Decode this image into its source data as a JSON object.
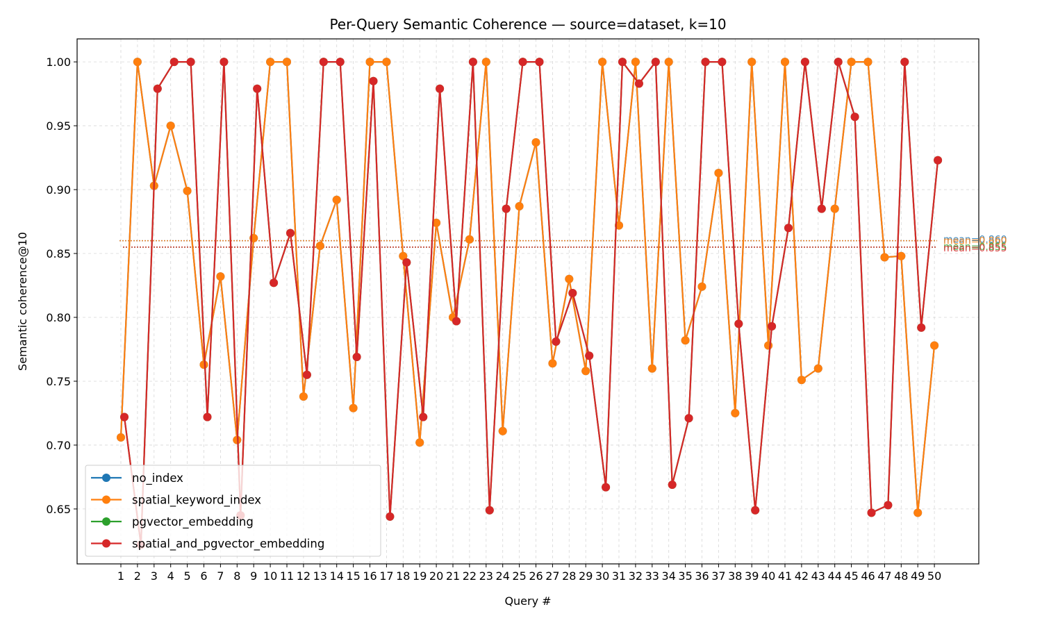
{
  "chart_data": {
    "type": "line",
    "title": "Per-Query Semantic Coherence — source=dataset, k=10",
    "xlabel": "Query #",
    "ylabel": "Semantic coherence@10",
    "x": [
      1,
      2,
      3,
      4,
      5,
      6,
      7,
      8,
      9,
      10,
      11,
      12,
      13,
      14,
      15,
      16,
      17,
      18,
      19,
      20,
      21,
      22,
      23,
      24,
      25,
      26,
      27,
      28,
      29,
      30,
      31,
      32,
      33,
      34,
      35,
      36,
      37,
      38,
      39,
      40,
      41,
      42,
      43,
      44,
      45,
      46,
      47,
      48,
      49,
      50
    ],
    "xtick_labels": [
      "1",
      "2",
      "3",
      "4",
      "5",
      "6",
      "7",
      "8",
      "9",
      "10",
      "11",
      "12",
      "13",
      "14",
      "15",
      "16",
      "17",
      "18",
      "19",
      "20",
      "21",
      "22",
      "23",
      "24",
      "25",
      "26",
      "27",
      "28",
      "29",
      "30",
      "31",
      "32",
      "33",
      "34",
      "35",
      "36",
      "37",
      "38",
      "39",
      "40",
      "41",
      "42",
      "43",
      "44",
      "45",
      "46",
      "47",
      "48",
      "49",
      "50"
    ],
    "ylim": [
      0.607,
      1.018
    ],
    "yticks": [
      0.65,
      0.7,
      0.75,
      0.8,
      0.85,
      0.9,
      0.95,
      1.0
    ],
    "ytick_labels": [
      "0.65",
      "0.70",
      "0.75",
      "0.80",
      "0.85",
      "0.90",
      "0.95",
      "1.00"
    ],
    "grid": true,
    "legend_position": "lower-left",
    "series": [
      {
        "name": "no_index",
        "color": "#1f77b4",
        "values": [
          0.706,
          1.0,
          0.903,
          0.95,
          0.899,
          0.763,
          0.832,
          0.704,
          0.862,
          1.0,
          1.0,
          0.738,
          0.856,
          0.892,
          0.729,
          1.0,
          1.0,
          0.848,
          0.702,
          0.874,
          0.8,
          0.861,
          1.0,
          0.711,
          0.887,
          0.937,
          0.764,
          0.83,
          0.758,
          1.0,
          0.872,
          1.0,
          0.76,
          1.0,
          0.782,
          0.824,
          0.913,
          0.725,
          1.0,
          0.778,
          1.0,
          0.751,
          0.76,
          0.885,
          1.0,
          1.0,
          0.847,
          0.848,
          0.647,
          0.778
        ],
        "mean_label": "mean=0.860",
        "mean": 0.86
      },
      {
        "name": "spatial_keyword_index",
        "color": "#ff7f0e",
        "values": [
          0.706,
          1.0,
          0.903,
          0.95,
          0.899,
          0.763,
          0.832,
          0.704,
          0.862,
          1.0,
          1.0,
          0.738,
          0.856,
          0.892,
          0.729,
          1.0,
          1.0,
          0.848,
          0.702,
          0.874,
          0.8,
          0.861,
          1.0,
          0.711,
          0.887,
          0.937,
          0.764,
          0.83,
          0.758,
          1.0,
          0.872,
          1.0,
          0.76,
          1.0,
          0.782,
          0.824,
          0.913,
          0.725,
          1.0,
          0.778,
          1.0,
          0.751,
          0.76,
          0.885,
          1.0,
          1.0,
          0.847,
          0.848,
          0.647,
          0.778
        ],
        "mean_label": "mean=0.860",
        "mean": 0.86
      },
      {
        "name": "pgvector_embedding",
        "color": "#2ca02c",
        "values": [
          0.722,
          0.622,
          0.979,
          1.0,
          1.0,
          0.722,
          1.0,
          0.645,
          0.979,
          0.827,
          0.866,
          0.755,
          1.0,
          1.0,
          0.769,
          0.985,
          0.644,
          0.843,
          0.722,
          0.979,
          0.797,
          1.0,
          0.649,
          0.885,
          1.0,
          1.0,
          0.781,
          0.819,
          0.77,
          0.667,
          1.0,
          0.983,
          1.0,
          0.669,
          0.721,
          1.0,
          1.0,
          0.795,
          0.649,
          0.793,
          0.87,
          1.0,
          0.885,
          1.0,
          0.957,
          0.647,
          0.653,
          1.0,
          0.792,
          0.923
        ],
        "mean_label": "mean=0.855",
        "mean": 0.855
      },
      {
        "name": "spatial_and_pgvector_embedding",
        "color": "#d62728",
        "values": [
          0.722,
          0.622,
          0.979,
          1.0,
          1.0,
          0.722,
          1.0,
          0.645,
          0.979,
          0.827,
          0.866,
          0.755,
          1.0,
          1.0,
          0.769,
          0.985,
          0.644,
          0.843,
          0.722,
          0.979,
          0.797,
          1.0,
          0.649,
          0.885,
          1.0,
          1.0,
          0.781,
          0.819,
          0.77,
          0.667,
          1.0,
          0.983,
          1.0,
          0.669,
          0.721,
          1.0,
          1.0,
          0.795,
          0.649,
          0.793,
          0.87,
          1.0,
          0.885,
          1.0,
          0.957,
          0.647,
          0.653,
          1.0,
          0.792,
          0.923
        ],
        "mean_label": "mean=0.855",
        "mean": 0.855
      }
    ]
  }
}
